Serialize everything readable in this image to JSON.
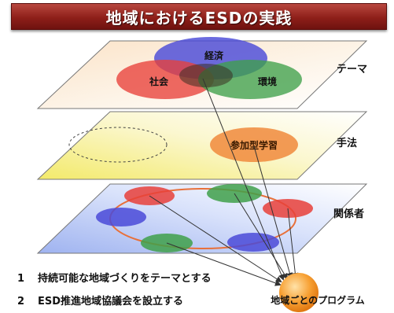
{
  "title": "地域におけるESDの実践",
  "layers": {
    "theme": {
      "label": "テーマ",
      "circles": {
        "economy": "経済",
        "society": "社会",
        "environment": "環境"
      }
    },
    "method": {
      "label": "手法",
      "participatory": "参加型学習"
    },
    "stakeholders": {
      "label": "関係者"
    }
  },
  "program": "地域ごとのプログラム",
  "points": [
    {
      "num": "1",
      "text": "持続可能な地域づくりをテーマとする"
    },
    {
      "num": "2",
      "text": "ESD推進地域協議会を設立する"
    }
  ],
  "colors": {
    "title_bg": "#8e1f19",
    "red": "#e8403a",
    "blue": "#4a4ad8",
    "green": "#3fa04a",
    "orange": "#f08a3c"
  }
}
